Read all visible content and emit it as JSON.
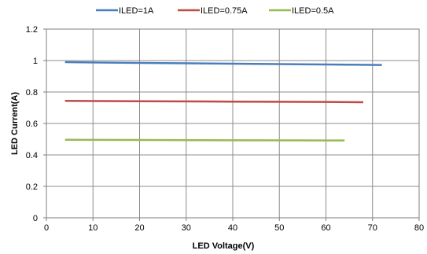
{
  "chart_data": {
    "type": "line",
    "title": "",
    "xlabel": "LED Voltage(V)",
    "ylabel": "LED Current(A)",
    "xlim": [
      0,
      80
    ],
    "ylim": [
      0,
      1.2
    ],
    "x_ticks": [
      0,
      10,
      20,
      30,
      40,
      50,
      60,
      70,
      80
    ],
    "y_ticks": [
      0,
      0.2,
      0.4,
      0.6,
      0.8,
      1,
      1.2
    ],
    "x_tick_labels": [
      "0",
      "10",
      "20",
      "30",
      "40",
      "50",
      "60",
      "70",
      "80"
    ],
    "y_tick_labels": [
      "0",
      "0.2",
      "0.4",
      "0.6",
      "0.8",
      "1",
      "1.2"
    ],
    "grid": true,
    "legend_position": "top",
    "series": [
      {
        "name": "ILED=1A",
        "color": "#4a7ebb",
        "x": [
          4,
          20,
          40,
          60,
          72
        ],
        "y": [
          0.99,
          0.985,
          0.98,
          0.975,
          0.972
        ]
      },
      {
        "name": "ILED=0.75A",
        "color": "#be4b48",
        "x": [
          4,
          20,
          40,
          60,
          68
        ],
        "y": [
          0.744,
          0.741,
          0.739,
          0.737,
          0.735
        ]
      },
      {
        "name": "ILED=0.5A",
        "color": "#98b954",
        "x": [
          4,
          20,
          40,
          60,
          64
        ],
        "y": [
          0.496,
          0.495,
          0.493,
          0.492,
          0.492
        ]
      }
    ]
  }
}
